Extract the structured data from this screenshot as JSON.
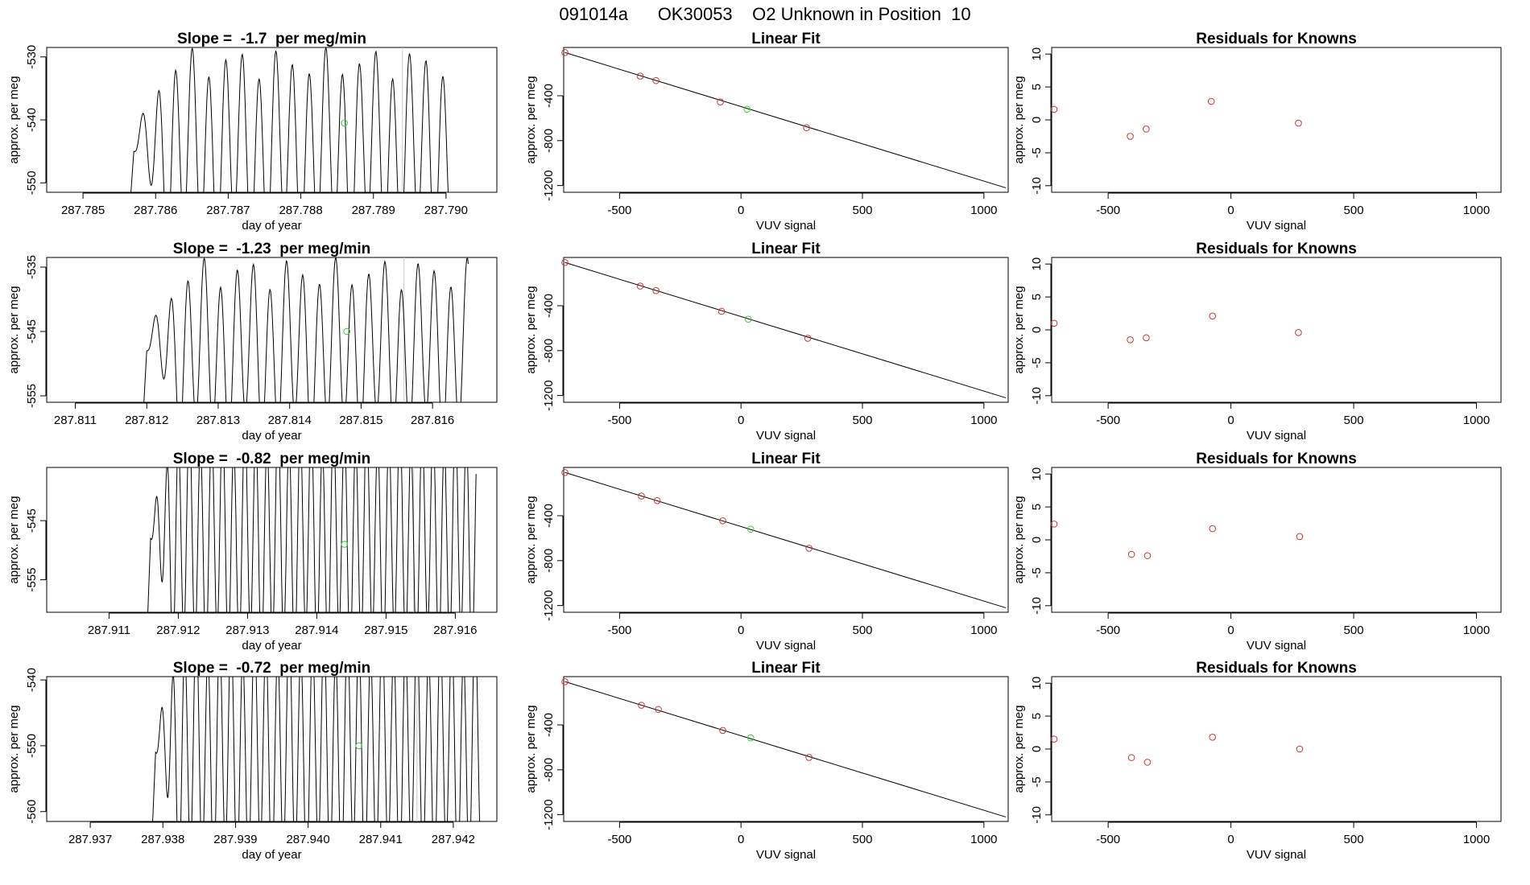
{
  "page_title": "091014a      OK30053    O2 Unknown in Position  10",
  "colors": {
    "known": "#cd3333",
    "unknown": "#33cc33",
    "line": "#000000",
    "background": "#ffffff"
  },
  "chart_data": [
    {
      "type": "line",
      "title": "Slope =  -1.7  per meg/min",
      "xlabel": "day of year",
      "ylabel": "approx. per meg",
      "xlim": [
        287.7845,
        287.7907
      ],
      "ylim": [
        -551.5,
        -528.5
      ],
      "xticks": [
        "287.785",
        "287.786",
        "287.787",
        "287.788",
        "287.789",
        "287.790"
      ],
      "xtick_values": [
        287.785,
        287.786,
        287.787,
        287.788,
        287.789,
        287.79
      ],
      "yticks": [
        "-550",
        "-540",
        "-530"
      ],
      "ytick_values": [
        -550,
        -540,
        -530
      ],
      "trace_start": 287.7857,
      "trace_end": 287.7901,
      "trace_period": 0.00023,
      "trace_base": -545,
      "trace_amp": 14,
      "trace_baseline": -551.5,
      "vline_x": 287.7894,
      "unknown_point": {
        "x": 287.7886,
        "y": -540.5
      }
    },
    {
      "type": "scatter",
      "title": "Linear Fit",
      "xlabel": "VUV signal",
      "ylabel": "approx. per meg",
      "xlim": [
        -730,
        1100
      ],
      "ylim": [
        -1260,
        30
      ],
      "xticks": [
        "-500",
        "0",
        "500",
        "1000"
      ],
      "xtick_values": [
        -500,
        0,
        500,
        1000
      ],
      "yticks": [
        "-1200",
        "-800",
        "-400"
      ],
      "ytick_values": [
        -1200,
        -800,
        -400
      ],
      "fit_line": {
        "x1": -725,
        "y1": -15,
        "x2": 1090,
        "y2": -1220
      },
      "knowns": [
        {
          "x": -725,
          "y": -15
        },
        {
          "x": -415,
          "y": -225
        },
        {
          "x": -350,
          "y": -265
        },
        {
          "x": -85,
          "y": -455
        },
        {
          "x": 270,
          "y": -685
        }
      ],
      "unknown": {
        "x": 25,
        "y": -520
      }
    },
    {
      "type": "scatter",
      "title": "Residuals for Knowns",
      "xlabel": "VUV signal",
      "ylabel": "approx. per meg",
      "xlim": [
        -730,
        1100
      ],
      "ylim": [
        -11,
        11
      ],
      "xticks": [
        "-500",
        "0",
        "500",
        "1000"
      ],
      "xtick_values": [
        -500,
        0,
        500,
        1000
      ],
      "yticks": [
        "-10",
        "-5",
        "0",
        "5",
        "10"
      ],
      "ytick_values": [
        -10,
        -5,
        0,
        5,
        10
      ],
      "knowns": [
        {
          "x": -720,
          "y": 1.6
        },
        {
          "x": -410,
          "y": -2.5
        },
        {
          "x": -345,
          "y": -1.4
        },
        {
          "x": -80,
          "y": 2.8
        },
        {
          "x": 275,
          "y": -0.5
        }
      ]
    },
    {
      "type": "line",
      "title": "Slope =  -1.23  per meg/min",
      "xlabel": "day of year",
      "ylabel": "approx. per meg",
      "xlim": [
        287.8106,
        287.8169
      ],
      "ylim": [
        -556,
        -533.5
      ],
      "xticks": [
        "287.811",
        "287.812",
        "287.813",
        "287.814",
        "287.815",
        "287.816"
      ],
      "xtick_values": [
        287.811,
        287.812,
        287.813,
        287.814,
        287.815,
        287.816
      ],
      "yticks": [
        "-555",
        "-545",
        "-535"
      ],
      "ytick_values": [
        -555,
        -545,
        -535
      ],
      "trace_start": 287.812,
      "trace_end": 287.8165,
      "trace_period": 0.00023,
      "trace_base": -548,
      "trace_amp": 12,
      "trace_baseline": -556,
      "vline_x": 287.8156,
      "unknown_point": {
        "x": 287.8148,
        "y": -545
      }
    },
    {
      "type": "scatter",
      "title": "Linear Fit",
      "xlabel": "VUV signal",
      "ylabel": "approx. per meg",
      "xlim": [
        -730,
        1100
      ],
      "ylim": [
        -1260,
        30
      ],
      "xticks": [
        "-500",
        "0",
        "500",
        "1000"
      ],
      "xtick_values": [
        -500,
        0,
        500,
        1000
      ],
      "yticks": [
        "-1200",
        "-800",
        "-400"
      ],
      "ytick_values": [
        -1200,
        -800,
        -400
      ],
      "fit_line": {
        "x1": -725,
        "y1": -15,
        "x2": 1090,
        "y2": -1220
      },
      "knowns": [
        {
          "x": -725,
          "y": -15
        },
        {
          "x": -415,
          "y": -225
        },
        {
          "x": -350,
          "y": -265
        },
        {
          "x": -80,
          "y": -450
        },
        {
          "x": 275,
          "y": -690
        }
      ],
      "unknown": {
        "x": 30,
        "y": -520
      }
    },
    {
      "type": "scatter",
      "title": "Residuals for Knowns",
      "xlabel": "VUV signal",
      "ylabel": "approx. per meg",
      "xlim": [
        -730,
        1100
      ],
      "ylim": [
        -11,
        11
      ],
      "xticks": [
        "-500",
        "0",
        "500",
        "1000"
      ],
      "xtick_values": [
        -500,
        0,
        500,
        1000
      ],
      "yticks": [
        "-10",
        "-5",
        "0",
        "5",
        "10"
      ],
      "ytick_values": [
        -10,
        -5,
        0,
        5,
        10
      ],
      "knowns": [
        {
          "x": -720,
          "y": 1.0
        },
        {
          "x": -410,
          "y": -1.5
        },
        {
          "x": -345,
          "y": -1.2
        },
        {
          "x": -75,
          "y": 2.1
        },
        {
          "x": 275,
          "y": -0.4
        }
      ]
    },
    {
      "type": "line",
      "title": "Slope =  -0.82  per meg/min",
      "xlabel": "day of year",
      "ylabel": "approx. per meg",
      "xlim": [
        287.9101,
        287.9166
      ],
      "ylim": [
        -560.5,
        -536
      ],
      "xticks": [
        "287.911",
        "287.912",
        "287.913",
        "287.914",
        "287.915",
        "287.916"
      ],
      "xtick_values": [
        287.911,
        287.912,
        287.913,
        287.914,
        287.915,
        287.916
      ],
      "yticks": [
        "-555",
        "-545"
      ],
      "ytick_values": [
        -555,
        -545
      ],
      "trace_start": 287.9116,
      "trace_end": 287.9163,
      "trace_period": 0.00016,
      "trace_base": -548,
      "trace_amp": 18,
      "trace_baseline": -560.5,
      "vline_x": 287.9154,
      "unknown_point": {
        "x": 287.9144,
        "y": -549
      }
    },
    {
      "type": "scatter",
      "title": "Linear Fit",
      "xlabel": "VUV signal",
      "ylabel": "approx. per meg",
      "xlim": [
        -730,
        1100
      ],
      "ylim": [
        -1260,
        30
      ],
      "xticks": [
        "-500",
        "0",
        "500",
        "1000"
      ],
      "xtick_values": [
        -500,
        0,
        500,
        1000
      ],
      "yticks": [
        "-1200",
        "-800",
        "-400"
      ],
      "ytick_values": [
        -1200,
        -800,
        -400
      ],
      "fit_line": {
        "x1": -725,
        "y1": -15,
        "x2": 1090,
        "y2": -1220
      },
      "knowns": [
        {
          "x": -725,
          "y": -15
        },
        {
          "x": -410,
          "y": -225
        },
        {
          "x": -345,
          "y": -265
        },
        {
          "x": -75,
          "y": -445
        },
        {
          "x": 280,
          "y": -690
        }
      ],
      "unknown": {
        "x": 40,
        "y": -520
      }
    },
    {
      "type": "scatter",
      "title": "Residuals for Knowns",
      "xlabel": "VUV signal",
      "ylabel": "approx. per meg",
      "xlim": [
        -730,
        1100
      ],
      "ylim": [
        -11,
        11
      ],
      "xticks": [
        "-500",
        "0",
        "500",
        "1000"
      ],
      "xtick_values": [
        -500,
        0,
        500,
        1000
      ],
      "yticks": [
        "-10",
        "-5",
        "0",
        "5",
        "10"
      ],
      "ytick_values": [
        -10,
        -5,
        0,
        5,
        10
      ],
      "knowns": [
        {
          "x": -720,
          "y": 2.4
        },
        {
          "x": -405,
          "y": -2.2
        },
        {
          "x": -340,
          "y": -2.4
        },
        {
          "x": -75,
          "y": 1.7
        },
        {
          "x": 280,
          "y": 0.5
        }
      ]
    },
    {
      "type": "line",
      "title": "Slope =  -0.72  per meg/min",
      "xlabel": "day of year",
      "ylabel": "approx. per meg",
      "xlim": [
        287.9364,
        287.9426
      ],
      "ylim": [
        -561.5,
        -539.5
      ],
      "xticks": [
        "287.937",
        "287.938",
        "287.939",
        "287.940",
        "287.941",
        "287.942"
      ],
      "xtick_values": [
        287.937,
        287.938,
        287.939,
        287.94,
        287.941,
        287.942
      ],
      "yticks": [
        "-560",
        "-550",
        "-540"
      ],
      "ytick_values": [
        -560,
        -550,
        -540
      ],
      "trace_start": 287.9379,
      "trace_end": 287.9424,
      "trace_period": 0.00016,
      "trace_base": -551,
      "trace_amp": 17,
      "trace_baseline": -561.5,
      "vline_x": 287.9415,
      "unknown_point": {
        "x": 287.9407,
        "y": -550
      }
    },
    {
      "type": "scatter",
      "title": "Linear Fit",
      "xlabel": "VUV signal",
      "ylabel": "approx. per meg",
      "xlim": [
        -730,
        1100
      ],
      "ylim": [
        -1260,
        30
      ],
      "xticks": [
        "-500",
        "0",
        "500",
        "1000"
      ],
      "xtick_values": [
        -500,
        0,
        500,
        1000
      ],
      "yticks": [
        "-1200",
        "-800",
        "-400"
      ],
      "ytick_values": [
        -1200,
        -800,
        -400
      ],
      "fit_line": {
        "x1": -725,
        "y1": -15,
        "x2": 1090,
        "y2": -1220
      },
      "knowns": [
        {
          "x": -725,
          "y": -15
        },
        {
          "x": -410,
          "y": -225
        },
        {
          "x": -340,
          "y": -262
        },
        {
          "x": -75,
          "y": -450
        },
        {
          "x": 280,
          "y": -690
        }
      ],
      "unknown": {
        "x": 40,
        "y": -515
      }
    },
    {
      "type": "scatter",
      "title": "Residuals for Knowns",
      "xlabel": "VUV signal",
      "ylabel": "approx. per meg",
      "xlim": [
        -730,
        1100
      ],
      "ylim": [
        -11,
        11
      ],
      "xticks": [
        "-500",
        "0",
        "500",
        "1000"
      ],
      "xtick_values": [
        -500,
        0,
        500,
        1000
      ],
      "yticks": [
        "-10",
        "-5",
        "0",
        "5",
        "10"
      ],
      "ytick_values": [
        -10,
        -5,
        0,
        5,
        10
      ],
      "knowns": [
        {
          "x": -720,
          "y": 1.5
        },
        {
          "x": -405,
          "y": -1.3
        },
        {
          "x": -340,
          "y": -2.0
        },
        {
          "x": -75,
          "y": 1.8
        },
        {
          "x": 280,
          "y": 0.0
        }
      ]
    }
  ]
}
